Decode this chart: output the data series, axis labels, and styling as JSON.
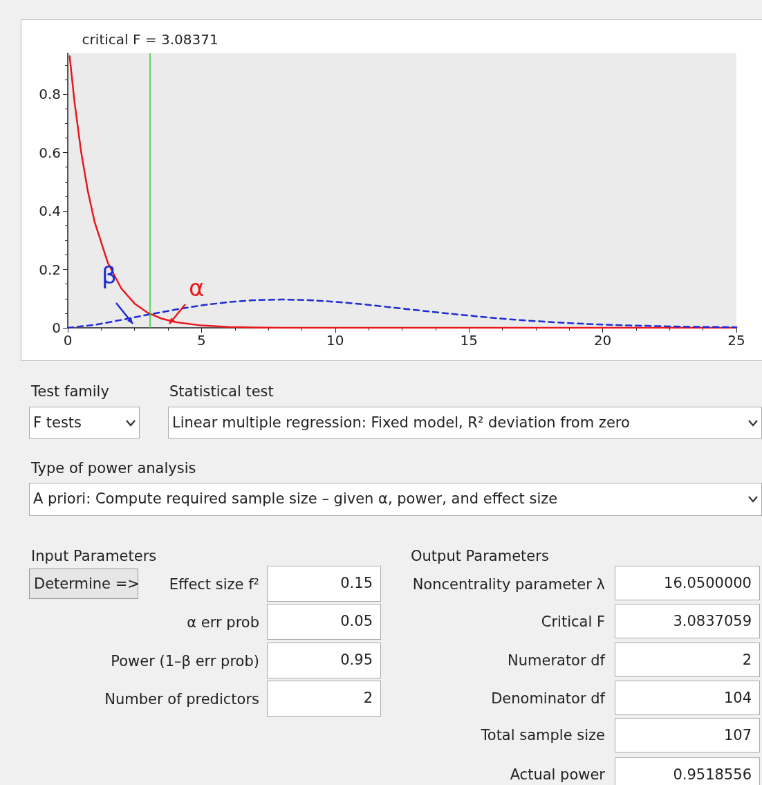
{
  "chart_data": [
    {
      "type": "line",
      "x": [
        0.07,
        0.25,
        0.5,
        0.75,
        1,
        1.5,
        2,
        2.5,
        3,
        3.5,
        4,
        5,
        6,
        7,
        8,
        10,
        12,
        15,
        20,
        25
      ],
      "series": [
        {
          "color": "#e8181c",
          "line_style": "solid",
          "values": [
            0.93,
            0.775,
            0.602,
            0.468,
            0.364,
            0.222,
            0.135,
            0.083,
            0.051,
            0.032,
            0.02,
            0.008,
            0.003,
            0.001,
            0,
            0,
            0,
            0,
            0,
            0
          ]
        },
        {
          "color": "#1f2bd6",
          "line_style": "dashed",
          "x": [
            0,
            1,
            2,
            3,
            4,
            5,
            6,
            7,
            8,
            9,
            10,
            11,
            12,
            13,
            14,
            15,
            16,
            17,
            18,
            19,
            20,
            21,
            22,
            23,
            24,
            25
          ],
          "values": [
            0,
            0.01,
            0.027,
            0.045,
            0.062,
            0.077,
            0.088,
            0.095,
            0.097,
            0.095,
            0.089,
            0.081,
            0.071,
            0.061,
            0.051,
            0.042,
            0.033,
            0.026,
            0.02,
            0.015,
            0.011,
            0.008,
            0.006,
            0.004,
            0.003,
            0.002
          ]
        }
      ],
      "xlim": [
        0,
        25
      ],
      "xticks": [
        0,
        5,
        10,
        15,
        20,
        25
      ],
      "ylim": [
        0,
        0.94
      ],
      "yticks": [
        0,
        0.2,
        0.4,
        0.6,
        0.8
      ],
      "marker": "none",
      "grid": false,
      "ref_lines": [
        {
          "axis": "x",
          "value": 3.08371,
          "label": "critical F = 3.08371",
          "color": "#33cc33"
        }
      ],
      "annotations": [
        "β",
        "α"
      ]
    },
    {
      "type": "other",
      "annotations": [
        "Test family",
        "F tests",
        "Statistical test",
        "Linear multiple regression: Fixed model, R² deviation from zero",
        "Type of power analysis",
        "A priori: Compute required sample size – given α, power, and effect size",
        "Input Parameters",
        "Determine =>",
        "Effect size f²",
        "0.15",
        "α err prob",
        "0.05",
        "Power (1–β err prob)",
        "0.95",
        "Number of predictors",
        "2",
        "Output Parameters",
        "Noncentrality parameter λ",
        "16.0500000",
        "Critical F",
        "3.0837059",
        "Numerator df",
        "2",
        "Denominator df",
        "104",
        "Total sample size",
        "107",
        "Actual power",
        "0.9518556"
      ]
    }
  ]
}
